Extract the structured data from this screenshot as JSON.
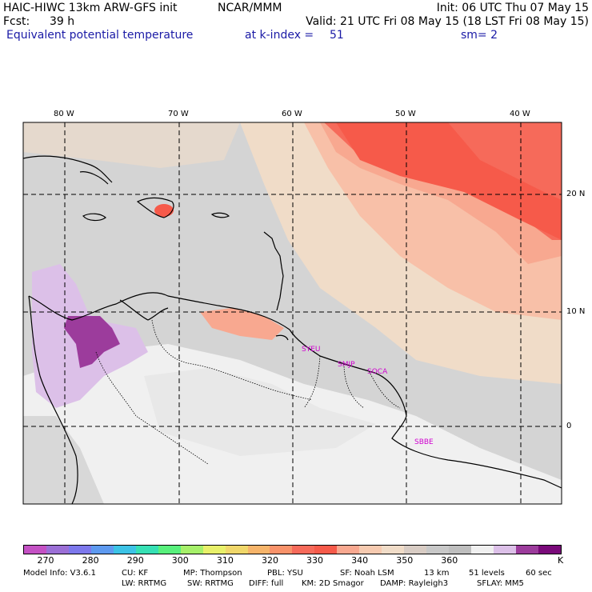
{
  "header": {
    "model": "HAIC-HIWC 13km ARW-GFS init",
    "org": "NCAR/MMM",
    "init": "Init: 06 UTC Thu 07 May 15",
    "fcst_label": "Fcst:",
    "fcst_value": "39 h",
    "valid": "Valid: 21 UTC Fri 08 May 15 (18 LST Fri 08 May 15)",
    "field": "Equivalent potential temperature",
    "level": "at k-index =",
    "level_value": "51",
    "smooth": "sm= 2"
  },
  "map": {
    "lon_labels": [
      "80 W",
      "70 W",
      "60 W",
      "50 W",
      "40 W"
    ],
    "lat_labels": [
      "20 N",
      "10 N",
      "0"
    ],
    "stations": [
      "SYEU",
      "SMJP",
      "SOCA",
      "SBBE"
    ]
  },
  "colorbar": {
    "colors": [
      "#c451c4",
      "#9b6fd6",
      "#7d78ec",
      "#5e9af0",
      "#3cc3e6",
      "#36e0b4",
      "#58f07c",
      "#a6f06a",
      "#e8f06a",
      "#f0d76a",
      "#f6b46a",
      "#f8926a",
      "#f66a5a",
      "#f65a4a",
      "#f8a890",
      "#f6cab0",
      "#f0dcc8",
      "#d8ccc4",
      "#c8c8c8",
      "#bebebe",
      "#f0f0f0",
      "#dcc0e8",
      "#9c3c9c",
      "#7a0a7a"
    ],
    "ticks": [
      "270",
      "280",
      "290",
      "300",
      "310",
      "320",
      "330",
      "340",
      "350",
      "360"
    ],
    "unit": "K"
  },
  "footer": {
    "line1": [
      "Model Info: V3.6.1",
      "CU: KF",
      "MP: Thompson",
      "PBL: YSU",
      "SF: Noah LSM",
      "13 km",
      "51 levels",
      "60 sec"
    ],
    "line2": [
      "LW: RRTMG",
      "SW: RRTMG",
      "DIFF: full",
      "KM: 2D Smagor",
      "DAMP: Rayleigh3",
      "SFLAY: MM5"
    ]
  }
}
